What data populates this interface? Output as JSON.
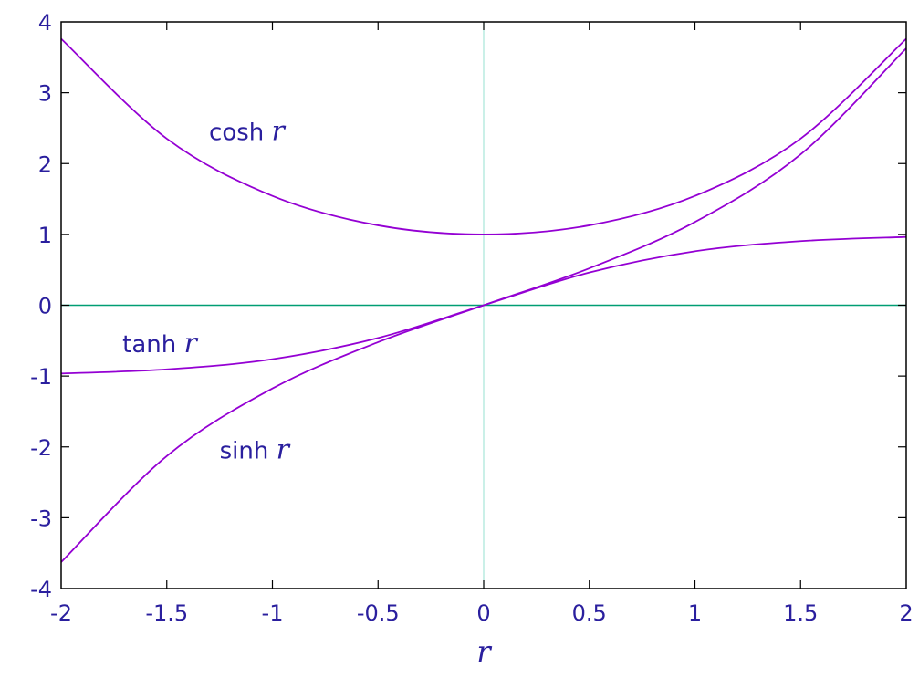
{
  "chart_data": {
    "type": "line",
    "title": "",
    "xlabel": "r",
    "ylabel": "",
    "xlim": [
      -2,
      2
    ],
    "ylim": [
      -4,
      4
    ],
    "grid": false,
    "x_ticks": [
      "-2",
      "-1.5",
      "-1",
      "-0.5",
      "0",
      "0.5",
      "1",
      "1.5",
      "2"
    ],
    "y_ticks": [
      "4",
      "3",
      "2",
      "1",
      "0",
      "-1",
      "-2",
      "-3",
      "-4"
    ],
    "series": [
      {
        "name": "cosh",
        "label_var": "r",
        "x": [
          -2,
          -1.5,
          -1,
          -0.5,
          0,
          0.5,
          1,
          1.5,
          2
        ],
        "y": [
          3.762,
          2.352,
          1.543,
          1.128,
          1.0,
          1.128,
          1.543,
          2.352,
          3.762
        ]
      },
      {
        "name": "sinh",
        "label_var": "r",
        "x": [
          -2,
          -1.5,
          -1,
          -0.5,
          0,
          0.5,
          1,
          1.5,
          2
        ],
        "y": [
          -3.627,
          -2.129,
          -1.175,
          -0.521,
          0.0,
          0.521,
          1.175,
          2.129,
          3.627
        ]
      },
      {
        "name": "tanh",
        "label_var": "r",
        "x": [
          -2,
          -1.5,
          -1,
          -0.5,
          0,
          0.5,
          1,
          1.5,
          2
        ],
        "y": [
          -0.964,
          -0.905,
          -0.762,
          -0.462,
          0.0,
          0.462,
          0.762,
          0.905,
          0.964
        ]
      }
    ],
    "annotations": [
      {
        "text": "cosh",
        "var": "r",
        "series": "cosh"
      },
      {
        "text": "tanh",
        "var": "r",
        "series": "tanh"
      },
      {
        "text": "sinh",
        "var": "r",
        "series": "sinh"
      }
    ],
    "colors": {
      "curve": "#9400d3",
      "text": "#2a1f9e",
      "zero_line": "#009e73",
      "y_axis_line": "#a8e6d8",
      "frame": "#000000"
    }
  }
}
